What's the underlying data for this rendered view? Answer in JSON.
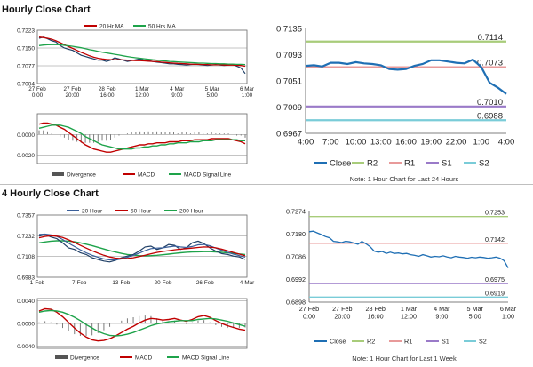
{
  "titles": {
    "hourly": "Hourly Close Chart",
    "four_hourly": "4 Hourly Close Chart"
  },
  "notes": {
    "hourly": "Note: 1 Hour Chart for Last 24 Hours",
    "four_hourly": "Note: 1 Hour Chart for Last 1 Week"
  },
  "colors": {
    "price": "#1f3f66",
    "ma20": "#c00000",
    "ma50": "#1ea34a",
    "macd": "#c00000",
    "signal": "#1ea34a",
    "divergence": "#7a7a7a",
    "close": "#1f6fb4",
    "r2": "#a8cc7a",
    "r1": "#e89a9a",
    "s1": "#9a7ac8",
    "s2": "#7accd8",
    "grid": "#888888"
  },
  "chart_data": [
    {
      "id": "hourly-price",
      "type": "line",
      "legend": [
        "20 Hr MA",
        "50 Hrs MA"
      ],
      "yticks": [
        "0.7223",
        "0.7150",
        "0.7077",
        "0.7004"
      ],
      "ylim": [
        0.7004,
        0.7223
      ],
      "xticks": [
        "27 Feb\n0:00",
        "27 Feb\n20:00",
        "28 Feb\n16:00",
        "1 Mar\n12:00",
        "4 Mar\n9:00",
        "5 Mar\n5:00",
        "6 Mar\n1:00"
      ],
      "series": [
        {
          "name": "Close",
          "values": [
            0.719,
            0.7195,
            0.7188,
            0.718,
            0.7175,
            0.716,
            0.715,
            0.7145,
            0.714,
            0.713,
            0.712,
            0.7115,
            0.711,
            0.7105,
            0.71,
            0.71,
            0.7095,
            0.71,
            0.711,
            0.7105,
            0.71,
            0.7095,
            0.7098,
            0.7102,
            0.7105,
            0.71,
            0.7098,
            0.7095,
            0.7092,
            0.709,
            0.7088,
            0.7085,
            0.7085,
            0.7083,
            0.7082,
            0.708,
            0.7082,
            0.7083,
            0.7082,
            0.708,
            0.7078,
            0.708,
            0.7082,
            0.708,
            0.7078,
            0.708,
            0.7082,
            0.7075,
            0.7068,
            0.7045
          ]
        },
        {
          "name": "20 Hr MA",
          "values": [
            0.7195,
            0.7193,
            0.719,
            0.7186,
            0.718,
            0.7172,
            0.7164,
            0.7156,
            0.7148,
            0.714,
            0.7132,
            0.7125,
            0.7118,
            0.7112,
            0.7108,
            0.7105,
            0.7103,
            0.7102,
            0.7102,
            0.7102,
            0.7101,
            0.71,
            0.7099,
            0.7098,
            0.7098,
            0.7097,
            0.7096,
            0.7095,
            0.7094,
            0.7092,
            0.7091,
            0.7089,
            0.7088,
            0.7087,
            0.7086,
            0.7085,
            0.7084,
            0.7083,
            0.7083,
            0.7082,
            0.7082,
            0.7081,
            0.7081,
            0.7081,
            0.708,
            0.708,
            0.708,
            0.7079,
            0.7078,
            0.7075
          ]
        },
        {
          "name": "50 Hrs MA",
          "values": [
            0.716,
            0.7162,
            0.7163,
            0.7164,
            0.7164,
            0.7163,
            0.7161,
            0.7159,
            0.7157,
            0.7154,
            0.7151,
            0.7147,
            0.7143,
            0.714,
            0.7136,
            0.7133,
            0.713,
            0.7127,
            0.7124,
            0.7121,
            0.7118,
            0.7115,
            0.7112,
            0.711,
            0.7108,
            0.7106,
            0.7104,
            0.7102,
            0.71,
            0.7098,
            0.7097,
            0.7095,
            0.7094,
            0.7093,
            0.7092,
            0.7091,
            0.709,
            0.7089,
            0.7088,
            0.7088,
            0.7087,
            0.7086,
            0.7086,
            0.7085,
            0.7085,
            0.7084,
            0.7084,
            0.7083,
            0.7083,
            0.7082
          ]
        }
      ]
    },
    {
      "id": "hourly-macd",
      "type": "line",
      "legend": [
        "Divergence",
        "MACD",
        "MACD Signal Line"
      ],
      "yticks": [
        "0.0000",
        "-0.0020"
      ],
      "ylim": [
        -0.0028,
        0.002
      ],
      "series": [
        {
          "name": "MACD",
          "values": [
            0.001,
            0.0011,
            0.0011,
            0.001,
            0.0009,
            0.0007,
            0.0005,
            0.0002,
            -0.0001,
            -0.0004,
            -0.0007,
            -0.001,
            -0.0012,
            -0.0014,
            -0.0015,
            -0.0016,
            -0.0017,
            -0.0017,
            -0.0016,
            -0.0015,
            -0.0014,
            -0.0013,
            -0.0012,
            -0.0011,
            -0.001,
            -0.001,
            -0.0009,
            -0.0009,
            -0.0008,
            -0.0008,
            -0.0008,
            -0.0007,
            -0.0007,
            -0.0007,
            -0.0006,
            -0.0006,
            -0.0006,
            -0.0005,
            -0.0005,
            -0.0005,
            -0.0005,
            -0.0004,
            -0.0004,
            -0.0004,
            -0.0004,
            -0.0004,
            -0.0005,
            -0.0006,
            -0.0007,
            -0.0009
          ]
        },
        {
          "name": "MACD Signal Line",
          "values": [
            0.0006,
            0.0007,
            0.0008,
            0.0009,
            0.0009,
            0.0009,
            0.0008,
            0.0007,
            0.0005,
            0.0003,
            0.0001,
            -0.0002,
            -0.0004,
            -0.0006,
            -0.0008,
            -0.001,
            -0.0011,
            -0.0012,
            -0.0013,
            -0.0014,
            -0.0014,
            -0.0014,
            -0.0014,
            -0.0013,
            -0.0013,
            -0.0012,
            -0.0012,
            -0.0011,
            -0.0011,
            -0.001,
            -0.001,
            -0.0009,
            -0.0009,
            -0.0008,
            -0.0008,
            -0.0008,
            -0.0007,
            -0.0007,
            -0.0007,
            -0.0006,
            -0.0006,
            -0.0006,
            -0.0005,
            -0.0005,
            -0.0005,
            -0.0005,
            -0.0005,
            -0.0005,
            -0.0006,
            -0.0006
          ]
        },
        {
          "name": "Divergence",
          "values": [
            0.0004,
            0.0004,
            0.0003,
            0.0001,
            0.0,
            -0.0002,
            -0.0003,
            -0.0005,
            -0.0006,
            -0.0007,
            -0.0008,
            -0.0008,
            -0.0008,
            -0.0008,
            -0.0007,
            -0.0006,
            -0.0006,
            -0.0005,
            -0.0003,
            -0.0001,
            0.0,
            0.0001,
            0.0002,
            0.0002,
            0.0003,
            0.0002,
            0.0003,
            0.0002,
            0.0003,
            0.0002,
            0.0002,
            0.0002,
            0.0002,
            0.0001,
            0.0002,
            0.0002,
            0.0001,
            0.0002,
            0.0002,
            0.0001,
            0.0001,
            0.0002,
            0.0001,
            0.0001,
            0.0001,
            0.0001,
            0.0,
            -0.0001,
            -0.0001,
            -0.0003
          ]
        }
      ]
    },
    {
      "id": "hourly-pivot",
      "type": "line",
      "yticks": [
        "0.7135",
        "0.7093",
        "0.7051",
        "0.7009",
        "0.6967"
      ],
      "ylim": [
        0.6967,
        0.7135
      ],
      "xticks": [
        "4:00",
        "7:00",
        "10:00",
        "13:00",
        "16:00",
        "19:00",
        "22:00",
        "1:00",
        "4:00"
      ],
      "levels": {
        "R2": 0.7114,
        "R1": 0.7073,
        "S1": 0.701,
        "S2": 0.6988
      },
      "level_labels": {
        "R2": "0.7114",
        "R1": "0.7073",
        "S1": "0.7010",
        "S2": "0.6988"
      },
      "legend": [
        "Close",
        "R2",
        "R1",
        "S1",
        "S2"
      ],
      "series": [
        {
          "name": "Close",
          "values": [
            0.7075,
            0.7076,
            0.7074,
            0.708,
            0.708,
            0.7078,
            0.7081,
            0.7079,
            0.7078,
            0.7076,
            0.707,
            0.7069,
            0.707,
            0.7075,
            0.7078,
            0.7084,
            0.7084,
            0.7082,
            0.708,
            0.7079,
            0.7085,
            0.7073,
            0.7048,
            0.704,
            0.703
          ]
        }
      ]
    },
    {
      "id": "four-hourly-price",
      "type": "line",
      "legend": [
        "20 Hour",
        "50 Hour",
        "200 Hour"
      ],
      "yticks": [
        "0.7357",
        "0.7232",
        "0.7108",
        "0.6983"
      ],
      "ylim": [
        0.6983,
        0.7357
      ],
      "xticks": [
        "1-Feb",
        "7-Feb",
        "13-Feb",
        "20-Feb",
        "26-Feb",
        "4-Mar"
      ],
      "series": [
        {
          "name": "Close",
          "values": [
            0.723,
            0.724,
            0.7225,
            0.7215,
            0.719,
            0.716,
            0.715,
            0.713,
            0.712,
            0.71,
            0.709,
            0.708,
            0.7075,
            0.7085,
            0.71,
            0.711,
            0.712,
            0.714,
            0.7165,
            0.717,
            0.715,
            0.716,
            0.718,
            0.7175,
            0.715,
            0.716,
            0.719,
            0.72,
            0.7185,
            0.716,
            0.714,
            0.7125,
            0.712,
            0.711,
            0.7105,
            0.709
          ]
        },
        {
          "name": "20 Hour",
          "values": [
            0.724,
            0.7242,
            0.7238,
            0.7228,
            0.721,
            0.7188,
            0.7168,
            0.7148,
            0.713,
            0.7115,
            0.7103,
            0.7093,
            0.7087,
            0.7087,
            0.7093,
            0.7103,
            0.7115,
            0.7128,
            0.7143,
            0.7155,
            0.7158,
            0.716,
            0.7165,
            0.717,
            0.7165,
            0.7162,
            0.7168,
            0.7178,
            0.718,
            0.7172,
            0.7158,
            0.7145,
            0.7133,
            0.7122,
            0.7113,
            0.7104
          ]
        },
        {
          "name": "50 Hour",
          "values": [
            0.722,
            0.7228,
            0.7232,
            0.723,
            0.7222,
            0.7208,
            0.7192,
            0.7175,
            0.7158,
            0.7142,
            0.7128,
            0.7115,
            0.7105,
            0.7098,
            0.7095,
            0.7096,
            0.71,
            0.7107,
            0.7115,
            0.7124,
            0.7132,
            0.7138,
            0.7143,
            0.7148,
            0.7152,
            0.7155,
            0.7158,
            0.7162,
            0.7165,
            0.7164,
            0.716,
            0.7152,
            0.7142,
            0.7132,
            0.7122,
            0.7112
          ]
        },
        {
          "name": "200 Hour",
          "values": [
            0.719,
            0.7195,
            0.72,
            0.7202,
            0.7202,
            0.72,
            0.7196,
            0.719,
            0.7182,
            0.7173,
            0.7163,
            0.7153,
            0.7143,
            0.7134,
            0.7126,
            0.712,
            0.7116,
            0.7113,
            0.7112,
            0.7113,
            0.7115,
            0.7118,
            0.7122,
            0.7126,
            0.713,
            0.7133,
            0.7135,
            0.7136,
            0.7137,
            0.7137,
            0.7135,
            0.7133,
            0.713,
            0.7127,
            0.7123,
            0.712
          ]
        }
      ]
    },
    {
      "id": "four-hourly-macd",
      "type": "line",
      "legend": [
        "Divergence",
        "MACD",
        "MACD Signal Line"
      ],
      "yticks": [
        "0.0040",
        "0.0000",
        "-0.0040"
      ],
      "ylim": [
        -0.0044,
        0.0044
      ],
      "series": [
        {
          "name": "MACD",
          "values": [
            0.0022,
            0.0026,
            0.0025,
            0.002,
            0.0012,
            0.0002,
            -0.0008,
            -0.0017,
            -0.0024,
            -0.0029,
            -0.0031,
            -0.003,
            -0.0027,
            -0.0022,
            -0.0016,
            -0.001,
            -0.0005,
            0.0001,
            0.0006,
            0.0009,
            0.0008,
            0.0006,
            0.0007,
            0.0009,
            0.0006,
            0.0004,
            0.0007,
            0.0012,
            0.0014,
            0.0011,
            0.0005,
            0.0,
            -0.0004,
            -0.0007,
            -0.001,
            -0.0012
          ]
        },
        {
          "name": "MACD Signal Line",
          "values": [
            0.002,
            0.0022,
            0.0023,
            0.0022,
            0.002,
            0.0016,
            0.0011,
            0.0005,
            -0.0002,
            -0.0008,
            -0.0014,
            -0.0018,
            -0.0021,
            -0.0022,
            -0.0021,
            -0.0019,
            -0.0016,
            -0.0012,
            -0.0008,
            -0.0004,
            -0.0001,
            0.0001,
            0.0003,
            0.0004,
            0.0005,
            0.0005,
            0.0005,
            0.0007,
            0.0008,
            0.0009,
            0.0008,
            0.0006,
            0.0004,
            0.0001,
            -0.0002,
            -0.0005
          ]
        },
        {
          "name": "Divergence",
          "values": [
            0.0002,
            0.0004,
            0.0002,
            -0.0002,
            -0.0008,
            -0.0014,
            -0.0019,
            -0.0022,
            -0.0022,
            -0.0021,
            -0.0017,
            -0.0012,
            -0.0006,
            0.0,
            0.0005,
            0.0009,
            0.0011,
            0.0013,
            0.0014,
            0.0013,
            0.0009,
            0.0005,
            0.0004,
            0.0005,
            0.0001,
            -0.0001,
            0.0002,
            0.0005,
            0.0006,
            0.0002,
            -0.0003,
            -0.0006,
            -0.0008,
            -0.0008,
            -0.0008,
            -0.0007
          ]
        }
      ]
    },
    {
      "id": "four-hourly-pivot",
      "type": "line",
      "yticks": [
        "0.7274",
        "0.7180",
        "0.7086",
        "0.6992",
        "0.6898"
      ],
      "ylim": [
        0.6898,
        0.7274
      ],
      "xticks": [
        "27 Feb\n0:00",
        "27 Feb\n20:00",
        "28 Feb\n16:00",
        "1 Mar\n12:00",
        "4 Mar\n9:00",
        "5 Mar\n5:00",
        "6 Mar\n1:00"
      ],
      "levels": {
        "R2": 0.7253,
        "R1": 0.7142,
        "S1": 0.6975,
        "S2": 0.6919
      },
      "level_labels": {
        "R2": "0.7253",
        "R1": "0.7142",
        "S1": "0.6975",
        "S2": "0.6919"
      },
      "legend": [
        "Close",
        "R2",
        "R1",
        "S1",
        "S2"
      ],
      "series": [
        {
          "name": "Close",
          "values": [
            0.719,
            0.7192,
            0.7185,
            0.7178,
            0.717,
            0.7165,
            0.715,
            0.7148,
            0.7145,
            0.715,
            0.7148,
            0.7143,
            0.7138,
            0.715,
            0.714,
            0.7128,
            0.711,
            0.7105,
            0.7108,
            0.71,
            0.7105,
            0.71,
            0.7102,
            0.7098,
            0.71,
            0.7095,
            0.7092,
            0.7088,
            0.7095,
            0.709,
            0.7085,
            0.7088,
            0.7086,
            0.709,
            0.7085,
            0.7082,
            0.7088,
            0.7085,
            0.7083,
            0.708,
            0.7084,
            0.7082,
            0.7085,
            0.7083,
            0.708,
            0.7082,
            0.7085,
            0.708,
            0.707,
            0.704
          ]
        }
      ]
    }
  ]
}
